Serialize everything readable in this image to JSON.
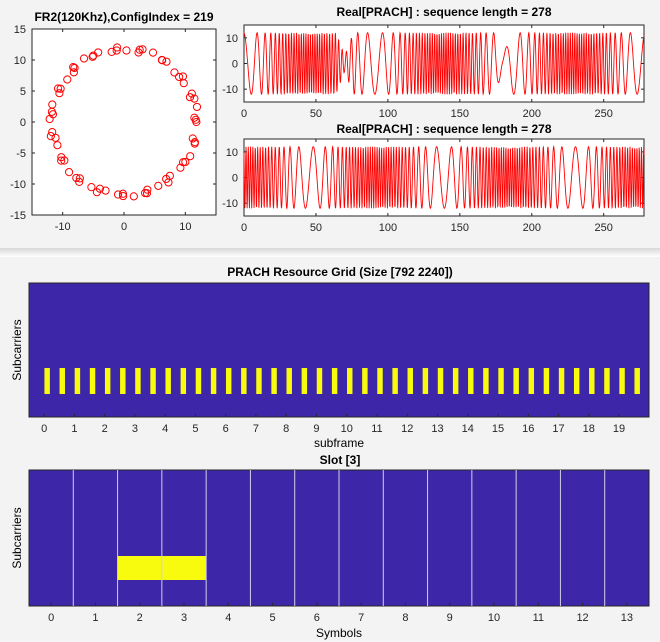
{
  "chart_data": [
    {
      "type": "scatter",
      "title": "FR2(120Khz),ConfigIndex = 219",
      "xlim": [
        -15,
        15
      ],
      "ylim": [
        -15,
        15
      ],
      "xticks": [
        "-10",
        "0",
        "10"
      ],
      "yticks": [
        "15",
        "10",
        "5",
        "0",
        "-5",
        "-10",
        "-15"
      ],
      "marker": "circle",
      "marker_color": "#ff0000",
      "points_radius": 11.8,
      "points_count": 70,
      "grid": false
    },
    {
      "type": "line",
      "title": "Real[PRACH] : sequence length = 278",
      "xlim": [
        0,
        278
      ],
      "ylim": [
        -15,
        15
      ],
      "xticks": [
        "0",
        "50",
        "100",
        "150",
        "200",
        "250"
      ],
      "yticks": [
        "10",
        "0",
        "-10"
      ],
      "line_color": "#ff0000",
      "amplitude": 12
    },
    {
      "type": "line",
      "title": "Real[PRACH] : sequence length = 278",
      "xlim": [
        0,
        278
      ],
      "ylim": [
        -15,
        15
      ],
      "xticks": [
        "0",
        "50",
        "100",
        "150",
        "200",
        "250"
      ],
      "yticks": [
        "10",
        "0",
        "-10"
      ],
      "line_color": "#ff0000",
      "amplitude": 12
    },
    {
      "type": "heatmap",
      "title": "PRACH Resource Grid (Size [792 2240])",
      "xlabel": "subframe",
      "ylabel": "Subcarriers",
      "xlim": [
        -0.5,
        19.99
      ],
      "xticks": [
        "0",
        "1",
        "2",
        "3",
        "4",
        "5",
        "6",
        "7",
        "8",
        "9",
        "10",
        "11",
        "12",
        "13",
        "14",
        "15",
        "16",
        "17",
        "18",
        "19"
      ],
      "background_color": "#3d26a8",
      "highlight_color": "#f9fb0e",
      "prach_occasions_per_subframe": 2,
      "prach_symbol_width_subframes": 0.18
    },
    {
      "type": "heatmap",
      "title": "Slot [3]",
      "xlabel": "Symbols",
      "ylabel": "Subcarriers",
      "xlim": [
        -0.5,
        13.5
      ],
      "xticks": [
        "0",
        "1",
        "2",
        "3",
        "4",
        "5",
        "6",
        "7",
        "8",
        "9",
        "10",
        "11",
        "12",
        "13"
      ],
      "background_color": "#3d26a8",
      "highlight_color": "#f9fb0e",
      "highlight_symbols": [
        2,
        3
      ],
      "grid_line_color": "#d0d0e8"
    }
  ]
}
